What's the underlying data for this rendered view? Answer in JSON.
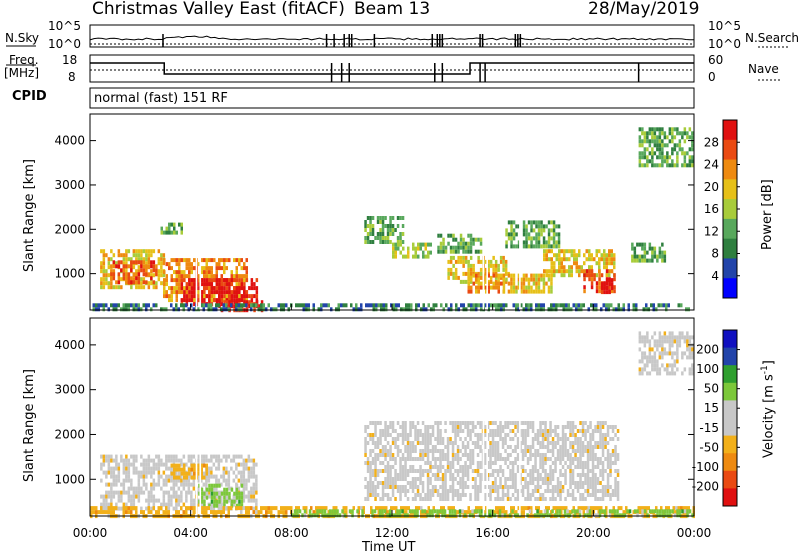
{
  "header": {
    "station": "Christmas Valley East (fitACF)",
    "beam": "Beam 13",
    "date": "28/May/2019"
  },
  "status_panels": {
    "nsky_label": "N.Sky",
    "nsky_ticks": [
      "10^5",
      "10^0"
    ],
    "nsearch_label": "N.Search",
    "nsearch_ticks": [
      "10^5",
      "10^0"
    ],
    "freq_label": "Freq.",
    "freq_unit": "[MHz]",
    "freq_ticks": [
      "18",
      "8"
    ],
    "nave_label": "Nave",
    "nave_ticks": [
      "60",
      "0"
    ],
    "cpid_label": "CPID",
    "cpid_value": "normal (fast) 151 RF"
  },
  "chart_data": [
    {
      "type": "heatmap",
      "name": "power",
      "ylabel": "Slant Range [km]",
      "yticks": [
        "4000",
        "3000",
        "2000",
        "1000"
      ],
      "xlabel": "Time UT",
      "xticks": [
        "00:00",
        "04:00",
        "08:00",
        "12:00",
        "16:00",
        "20:00",
        "00:00"
      ],
      "x_range_hours": [
        0,
        24
      ],
      "y_range_km": [
        180,
        4600
      ],
      "colorbar": {
        "label": "Power [dB]",
        "ticks": [
          "28",
          "24",
          "20",
          "16",
          "12",
          "8",
          "4"
        ],
        "colors": [
          "#0000ff",
          "#2244aa",
          "#2f7f3f",
          "#58a85c",
          "#a8cc3a",
          "#e6c018",
          "#ee8a10",
          "#ea4a12",
          "#e01010"
        ],
        "range": [
          0,
          32
        ]
      },
      "regions": [
        {
          "t0": 0.4,
          "t1": 2.9,
          "r0": 700,
          "r1": 1550,
          "level": 5
        },
        {
          "t0": 0.8,
          "t1": 2.6,
          "r0": 800,
          "r1": 1300,
          "level": 7
        },
        {
          "t0": 2.9,
          "t1": 6.2,
          "r0": 400,
          "r1": 1350,
          "level": 6
        },
        {
          "t0": 3.6,
          "t1": 6.6,
          "r0": 350,
          "r1": 900,
          "level": 8
        },
        {
          "t0": 5.0,
          "t1": 6.8,
          "r0": 180,
          "r1": 400,
          "level": 8
        },
        {
          "t0": 2.8,
          "t1": 3.6,
          "r0": 1950,
          "r1": 2150,
          "level": 3
        },
        {
          "t0": 10.9,
          "t1": 12.4,
          "r0": 1700,
          "r1": 2300,
          "level": 3
        },
        {
          "t0": 12.0,
          "t1": 13.5,
          "r0": 1350,
          "r1": 1700,
          "level": 4
        },
        {
          "t0": 13.7,
          "t1": 15.5,
          "r0": 1450,
          "r1": 1900,
          "level": 3
        },
        {
          "t0": 14.2,
          "t1": 16.6,
          "r0": 850,
          "r1": 1400,
          "level": 5
        },
        {
          "t0": 15.0,
          "t1": 16.4,
          "r0": 550,
          "r1": 1000,
          "level": 6
        },
        {
          "t0": 16.5,
          "t1": 18.6,
          "r0": 1600,
          "r1": 2200,
          "level": 3
        },
        {
          "t0": 16.4,
          "t1": 18.3,
          "r0": 550,
          "r1": 1000,
          "level": 5
        },
        {
          "t0": 18.0,
          "t1": 20.8,
          "r0": 950,
          "r1": 1550,
          "level": 5
        },
        {
          "t0": 19.6,
          "t1": 20.8,
          "r0": 600,
          "r1": 1100,
          "level": 7
        },
        {
          "t0": 20.3,
          "t1": 20.7,
          "r0": 600,
          "r1": 900,
          "level": 8
        },
        {
          "t0": 21.5,
          "t1": 22.8,
          "r0": 1300,
          "r1": 1700,
          "level": 3
        },
        {
          "t0": 21.8,
          "t1": 23.9,
          "r0": 3400,
          "r1": 4300,
          "level": 3
        },
        {
          "t0": 0.0,
          "t1": 24.0,
          "r0": 180,
          "r1": 330,
          "level": 2
        }
      ]
    },
    {
      "type": "heatmap",
      "name": "velocity",
      "ylabel": "Slant Range [km]",
      "yticks": [
        "4000",
        "3000",
        "2000",
        "1000"
      ],
      "xlabel": "Time UT",
      "xticks": [
        "00:00",
        "04:00",
        "08:00",
        "12:00",
        "16:00",
        "20:00",
        "00:00"
      ],
      "x_range_hours": [
        0,
        24
      ],
      "y_range_km": [
        180,
        4600
      ],
      "colorbar": {
        "label": "Velocity [m s^-1]",
        "ticks": [
          "200",
          "100",
          "50",
          "15",
          "-15",
          "-50",
          "-100",
          "-200"
        ],
        "colors": [
          "#e01010",
          "#ea4a12",
          "#ee8a10",
          "#f2b01a",
          "#c8c8c8",
          "#c8c8c8",
          "#7cc83a",
          "#2f9f2f",
          "#2244aa",
          "#1010c0"
        ],
        "range": [
          -250,
          250
        ]
      },
      "regions": [
        {
          "t0": 0.4,
          "t1": 6.6,
          "r0": 350,
          "r1": 1550,
          "level": 4
        },
        {
          "t0": 3.2,
          "t1": 4.6,
          "r0": 1000,
          "r1": 1350,
          "level": 3
        },
        {
          "t0": 4.2,
          "t1": 6.0,
          "r0": 450,
          "r1": 900,
          "level": 6
        },
        {
          "t0": 10.9,
          "t1": 21.0,
          "r0": 550,
          "r1": 2300,
          "level": 4
        },
        {
          "t0": 0.0,
          "t1": 24.0,
          "r0": 180,
          "r1": 400,
          "level": 3
        },
        {
          "t0": 8.0,
          "t1": 24.0,
          "r0": 180,
          "r1": 330,
          "level": 6
        },
        {
          "t0": 21.8,
          "t1": 23.9,
          "r0": 3400,
          "r1": 4300,
          "level": 4
        }
      ]
    }
  ]
}
